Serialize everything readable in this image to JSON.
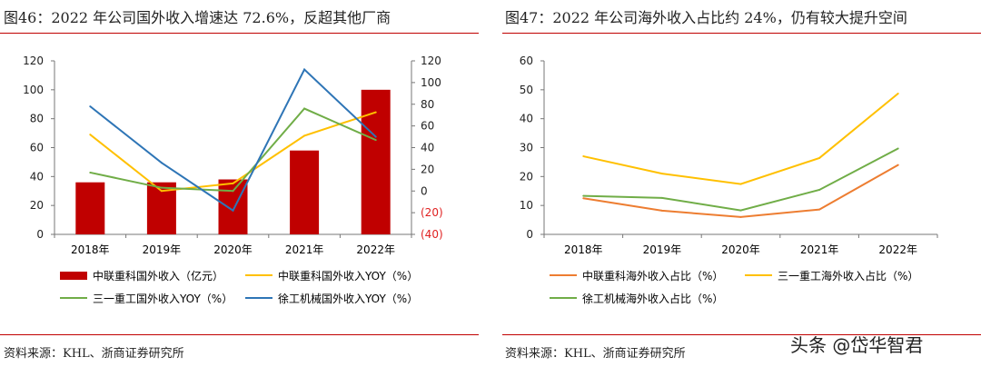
{
  "left": {
    "title": "图46：2022 年公司国外收入增速达 72.6%，反超其他厂商",
    "source": "资料来源：KHL、浙商证券研究所"
  },
  "right": {
    "title": "图47：2022 年公司海外收入占比约 24%，仍有较大提升空间",
    "source": "资料来源：KHL、浙商证券研究所"
  },
  "watermark": "头条 @岱华智君",
  "chart_data": [
    {
      "type": "bar+line",
      "categories": [
        "2018年",
        "2019年",
        "2020年",
        "2021年",
        "2022年"
      ],
      "y_left": {
        "ylim": [
          0,
          120
        ],
        "ticks": [
          "0",
          "20",
          "40",
          "60",
          "80",
          "100",
          "120"
        ]
      },
      "y_right": {
        "ylim": [
          -40,
          120
        ],
        "ticks": [
          "(40)",
          "(20)",
          "0",
          "20",
          "40",
          "60",
          "80",
          "100",
          "120"
        ],
        "negative_color": "#e02020"
      },
      "series": [
        {
          "name": "中联重科国外收入（亿元）",
          "type": "bar",
          "axis": "left",
          "color": "#c00000",
          "values": [
            36,
            36,
            38,
            58,
            100
          ]
        },
        {
          "name": "中联重科国外收入YOY（%）",
          "type": "line",
          "axis": "right",
          "color": "#ffc000",
          "values": [
            52,
            0,
            7,
            51,
            72.6
          ]
        },
        {
          "name": "三一重工国外收入YOY（%）",
          "type": "line",
          "axis": "right",
          "color": "#70ad47",
          "values": [
            17,
            3,
            0,
            76,
            47
          ]
        },
        {
          "name": "徐工机械国外收入YOY（%）",
          "type": "line",
          "axis": "right",
          "color": "#2e75b6",
          "values": [
            78,
            26,
            -18,
            112,
            50
          ]
        }
      ],
      "legend": "bottom"
    },
    {
      "type": "line",
      "categories": [
        "2018年",
        "2019年",
        "2020年",
        "2021年",
        "2022年"
      ],
      "ylim": [
        0,
        60
      ],
      "ticks": [
        "0",
        "10",
        "20",
        "30",
        "40",
        "50",
        "60"
      ],
      "series": [
        {
          "name": "中联重科海外收入占比（%）",
          "color": "#ed7d31",
          "values": [
            12.5,
            8.2,
            6,
            8.6,
            24
          ]
        },
        {
          "name": "三一重工海外收入占比（%）",
          "color": "#ffc000",
          "values": [
            27,
            21,
            17.4,
            26.4,
            48.7
          ]
        },
        {
          "name": "徐工机械海外收入占比（%）",
          "color": "#70ad47",
          "values": [
            13.3,
            12.6,
            8.3,
            15.4,
            29.7
          ]
        }
      ],
      "legend": "bottom"
    }
  ]
}
